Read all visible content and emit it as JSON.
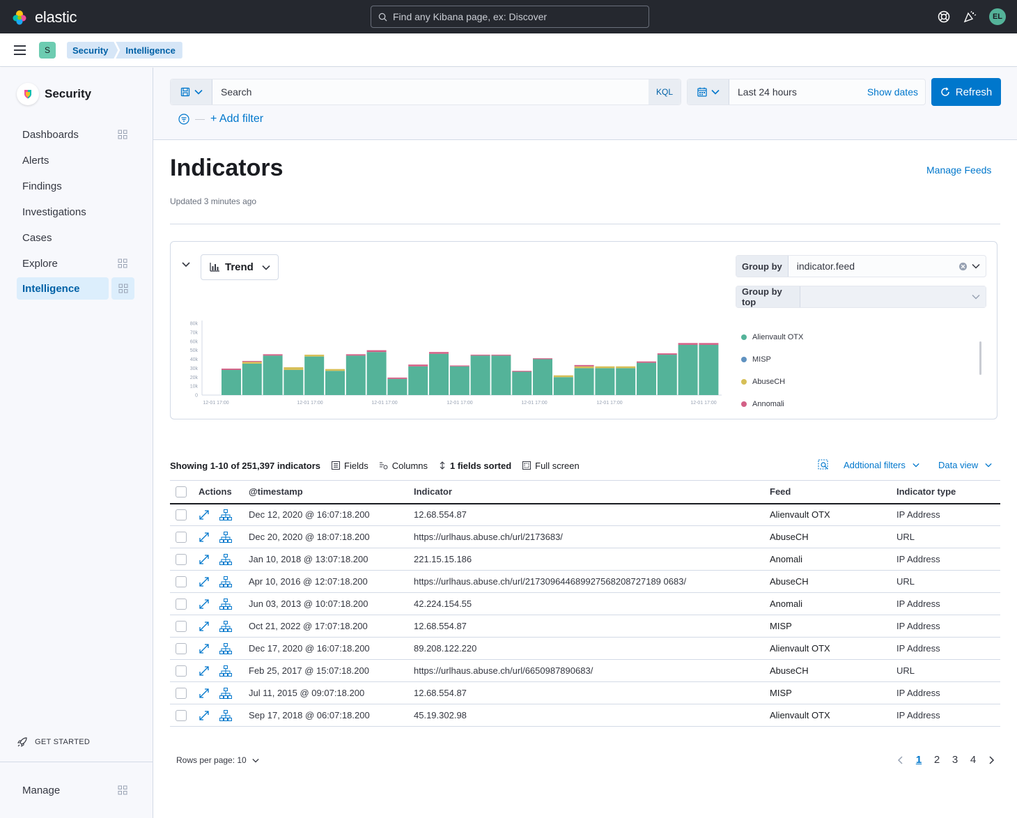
{
  "header": {
    "brand": "elastic",
    "search_placeholder": "Find any Kibana page, ex: Discover",
    "avatar_initials": "EL"
  },
  "subheader": {
    "space_initial": "S",
    "breadcrumbs": [
      "Security",
      "Intelligence"
    ]
  },
  "sidebar": {
    "title": "Security",
    "items": [
      {
        "label": "Dashboards",
        "has_grid": true,
        "active": false
      },
      {
        "label": "Alerts",
        "has_grid": false,
        "active": false
      },
      {
        "label": "Findings",
        "has_grid": false,
        "active": false
      },
      {
        "label": "Investigations",
        "has_grid": false,
        "active": false
      },
      {
        "label": "Cases",
        "has_grid": false,
        "active": false
      },
      {
        "label": "Explore",
        "has_grid": true,
        "active": false
      },
      {
        "label": "Intelligence",
        "has_grid": true,
        "active": true
      }
    ],
    "get_started": "GET STARTED",
    "manage": "Manage"
  },
  "query": {
    "search_placeholder": "Search",
    "language": "KQL",
    "time_range": "Last 24 hours",
    "show_dates": "Show dates",
    "refresh": "Refresh",
    "add_filter": "+ Add filter"
  },
  "page": {
    "title": "Indicators",
    "updated": "Updated 3 minutes ago",
    "manage_feeds": "Manage Feeds"
  },
  "chart_controls": {
    "view": "Trend",
    "group_by_label": "Group by",
    "group_by_value": "indicator.feed",
    "group_by_top_label": "Group by top"
  },
  "chart_data": {
    "type": "bar",
    "stacked": true,
    "yticks": [
      "80k",
      "70k",
      "60k",
      "50k",
      "40k",
      "30k",
      "20k",
      "10k",
      "0"
    ],
    "ylim": [
      0,
      80000
    ],
    "xticks": [
      "12-01 17:00",
      "12-01 17:00",
      "12-01 17:00",
      "12-01 17:00",
      "12-01 17:00",
      "12-01 17:00",
      "12-01 17:00"
    ],
    "series": [
      {
        "name": "Alienvault OTX",
        "color": "#54b399",
        "values": [
          28000,
          35000,
          44000,
          28000,
          43000,
          27000,
          44000,
          48000,
          18000,
          32000,
          46000,
          32000,
          44000,
          44000,
          26000,
          40000,
          20000,
          30000,
          30000,
          30000,
          36000,
          45000,
          56000,
          56000
        ]
      },
      {
        "name": "MISP",
        "color": "#6092c0",
        "values": [
          0,
          0,
          0,
          0,
          0,
          0,
          0,
          0,
          0,
          0,
          0,
          0,
          0,
          0,
          0,
          0,
          0,
          0,
          0,
          0,
          0,
          0,
          0,
          0
        ]
      },
      {
        "name": "AbuseCH",
        "color": "#d6bf57",
        "values": [
          0,
          2000,
          0,
          3000,
          2000,
          2000,
          0,
          0,
          0,
          0,
          0,
          0,
          0,
          0,
          0,
          0,
          2000,
          2000,
          2000,
          2000,
          0,
          0,
          0,
          0
        ]
      },
      {
        "name": "Annomali",
        "color": "#d36086",
        "values": [
          1500,
          1000,
          1500,
          0,
          0,
          0,
          1500,
          2000,
          1500,
          2000,
          2000,
          1000,
          1000,
          1000,
          1000,
          1000,
          0,
          1500,
          0,
          0,
          1500,
          1500,
          2000,
          2000
        ]
      }
    ]
  },
  "table_toolbar": {
    "showing": "Showing 1-10 of 251,397 indicators",
    "fields": "Fields",
    "columns": "Columns",
    "sorted": "1 fields sorted",
    "full_screen": "Full screen",
    "additional_filters": "Addtional filters",
    "data_view": "Data view"
  },
  "table": {
    "headers": [
      "Actions",
      "@timestamp",
      "Indicator",
      "Feed",
      "Indicator type"
    ],
    "rows": [
      {
        "timestamp": "Dec 12, 2020 @ 16:07:18.200",
        "indicator": "12.68.554.87",
        "feed": "Alienvault OTX",
        "type": "IP Address"
      },
      {
        "timestamp": "Dec 20, 2020 @ 18:07:18.200",
        "indicator": "https://urlhaus.abuse.ch/url/2173683/",
        "feed": "AbuseCH",
        "type": "URL"
      },
      {
        "timestamp": "Jan 10, 2018 @ 13:07:18.200",
        "indicator": "221.15.15.186",
        "feed": "Anomali",
        "type": "IP Address"
      },
      {
        "timestamp": "Apr 10, 2016 @ 12:07:18.200",
        "indicator": "https://urlhaus.abuse.ch/url/217309644689927568208727189 0683/",
        "feed": "AbuseCH",
        "type": "URL"
      },
      {
        "timestamp": "Jun 03, 2013 @ 10:07:18.200",
        "indicator": "42.224.154.55",
        "feed": "Anomali",
        "type": "IP Address"
      },
      {
        "timestamp": "Oct 21, 2022 @ 17:07:18.200",
        "indicator": "12.68.554.87",
        "feed": "MISP",
        "type": "IP Address"
      },
      {
        "timestamp": "Dec 17, 2020 @ 16:07:18.200",
        "indicator": "89.208.122.220",
        "feed": "Alienvault OTX",
        "type": "IP Address"
      },
      {
        "timestamp": "Feb 25, 2017 @ 15:07:18.200",
        "indicator": "https://urlhaus.abuse.ch/url/6650987890683/",
        "feed": "AbuseCH",
        "type": "URL"
      },
      {
        "timestamp": "Jul 11, 2015 @ 09:07:18.200",
        "indicator": "12.68.554.87",
        "feed": "MISP",
        "type": "IP Address"
      },
      {
        "timestamp": "Sep 17, 2018 @ 06:07:18.200",
        "indicator": "45.19.302.98",
        "feed": "Alienvault OTX",
        "type": "IP Address"
      }
    ]
  },
  "pagination": {
    "rows_per_page": "Rows per page: 10",
    "pages": [
      "1",
      "2",
      "3",
      "4"
    ],
    "current": "1"
  }
}
